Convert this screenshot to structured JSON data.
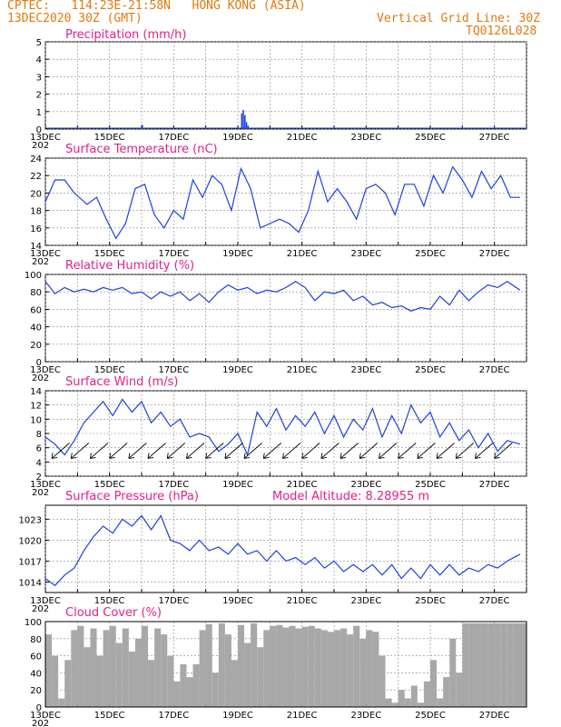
{
  "header": {
    "line1": "CPTEC:   114:23E-21:58N   HONG KONG (ASIA)",
    "line2": "13DEC2020 30Z (GMT)",
    "right1": "Vertical Grid Line: 30Z",
    "right2": "TQ0126L028"
  },
  "model_altitude": "Model Altitude: 8.28955 m",
  "year_stub": "202",
  "colors": {
    "line": "#1f3fe0",
    "title": "#e0208a",
    "header": "#e07a10",
    "cloud": "#a8a8a8",
    "grid": "#888888"
  },
  "x_labels": [
    "13DEC",
    "15DEC",
    "17DEC",
    "19DEC",
    "21DEC",
    "23DEC",
    "25DEC",
    "27DEC"
  ],
  "chart_data": [
    {
      "type": "bar",
      "name": "precip",
      "title": "Precipitation (mm/h)",
      "ylim": [
        0,
        5
      ],
      "yticks": [
        "0",
        "1",
        "2",
        "3",
        "4",
        "5"
      ],
      "ytick_values": [
        0,
        1,
        2,
        3,
        4,
        5
      ],
      "x_days": [
        3.0,
        6.1,
        6.15,
        6.2,
        6.25,
        6.3,
        12.6
      ],
      "values": [
        0.25,
        0.9,
        1.1,
        0.8,
        0.4,
        0.2,
        0.05
      ]
    },
    {
      "type": "line",
      "name": "temperature",
      "title": "Surface Temperature (nC)",
      "ylim": [
        14,
        24
      ],
      "yticks": [
        "14",
        "16",
        "18",
        "20",
        "22",
        "24"
      ],
      "ytick_values": [
        14,
        16,
        18,
        20,
        22,
        24
      ],
      "x_days": [
        0,
        0.3,
        0.6,
        0.9,
        1.3,
        1.6,
        1.9,
        2.2,
        2.5,
        2.8,
        3.1,
        3.4,
        3.7,
        4.0,
        4.3,
        4.6,
        4.9,
        5.2,
        5.5,
        5.8,
        6.1,
        6.4,
        6.7,
        7.0,
        7.3,
        7.6,
        7.9,
        8.2,
        8.5,
        8.8,
        9.1,
        9.4,
        9.7,
        10.0,
        10.3,
        10.6,
        10.9,
        11.2,
        11.5,
        11.8,
        12.1,
        12.4,
        12.7,
        13.0,
        13.3,
        13.6,
        13.9,
        14.2,
        14.5,
        14.8
      ],
      "values": [
        19.0,
        21.5,
        21.5,
        20.0,
        18.7,
        19.5,
        17.0,
        14.8,
        16.5,
        20.5,
        21.0,
        17.5,
        16.0,
        18.0,
        17.0,
        21.5,
        19.5,
        22.0,
        21.0,
        18.0,
        22.8,
        20.5,
        16.0,
        16.5,
        17.0,
        16.5,
        15.5,
        18.0,
        22.5,
        19.0,
        20.5,
        19.0,
        17.0,
        20.5,
        21.0,
        20.0,
        17.5,
        21.0,
        21.0,
        18.5,
        22.0,
        20.0,
        23.0,
        21.5,
        19.5,
        22.5,
        20.5,
        22.0,
        19.5,
        19.5
      ]
    },
    {
      "type": "line",
      "name": "humidity",
      "title": "Relative Humidity (%)",
      "ylim": [
        0,
        100
      ],
      "yticks": [
        "0",
        "20",
        "40",
        "60",
        "80",
        "100"
      ],
      "ytick_values": [
        0,
        20,
        40,
        60,
        80,
        100
      ],
      "x_days": [
        0,
        0.3,
        0.6,
        0.9,
        1.2,
        1.5,
        1.8,
        2.1,
        2.4,
        2.7,
        3.0,
        3.3,
        3.6,
        3.9,
        4.2,
        4.5,
        4.8,
        5.1,
        5.4,
        5.7,
        6.0,
        6.3,
        6.6,
        6.9,
        7.2,
        7.5,
        7.8,
        8.1,
        8.4,
        8.7,
        9.0,
        9.3,
        9.6,
        9.9,
        10.2,
        10.5,
        10.8,
        11.1,
        11.4,
        11.7,
        12.0,
        12.3,
        12.6,
        12.9,
        13.2,
        13.5,
        13.8,
        14.1,
        14.4,
        14.8
      ],
      "values": [
        92,
        78,
        85,
        80,
        83,
        80,
        85,
        82,
        85,
        78,
        80,
        72,
        80,
        75,
        80,
        70,
        78,
        68,
        80,
        88,
        82,
        85,
        78,
        82,
        80,
        85,
        92,
        85,
        70,
        80,
        78,
        82,
        70,
        75,
        65,
        68,
        62,
        64,
        58,
        62,
        60,
        75,
        65,
        82,
        70,
        80,
        88,
        85,
        92,
        82
      ]
    },
    {
      "type": "line",
      "name": "wind",
      "title": "Surface Wind (m/s)",
      "ylim": [
        2,
        14
      ],
      "yticks": [
        "2",
        "4",
        "6",
        "8",
        "10",
        "12",
        "14"
      ],
      "ytick_values": [
        2,
        4,
        6,
        8,
        10,
        12,
        14
      ],
      "x_days": [
        0,
        0.3,
        0.6,
        0.9,
        1.2,
        1.5,
        1.8,
        2.1,
        2.4,
        2.7,
        3.0,
        3.3,
        3.6,
        3.9,
        4.2,
        4.5,
        4.8,
        5.1,
        5.4,
        5.7,
        6.0,
        6.3,
        6.6,
        6.9,
        7.2,
        7.5,
        7.8,
        8.1,
        8.4,
        8.7,
        9.0,
        9.3,
        9.6,
        9.9,
        10.2,
        10.5,
        10.8,
        11.1,
        11.4,
        11.7,
        12.0,
        12.3,
        12.6,
        12.9,
        13.2,
        13.5,
        13.8,
        14.1,
        14.4,
        14.8
      ],
      "values": [
        7.5,
        6.5,
        5.0,
        7.0,
        9.5,
        11.0,
        12.5,
        10.5,
        12.8,
        11.0,
        12.5,
        9.5,
        11.0,
        9.0,
        10.0,
        7.5,
        8.0,
        7.5,
        5.5,
        6.5,
        8.0,
        5.0,
        11.0,
        9.0,
        11.5,
        8.5,
        10.5,
        9.0,
        11.0,
        8.0,
        10.5,
        7.5,
        10.0,
        8.5,
        11.5,
        7.5,
        10.5,
        8.0,
        12.0,
        9.5,
        11.0,
        7.5,
        9.5,
        7.0,
        8.5,
        6.0,
        8.0,
        5.5,
        7.0,
        6.5
      ]
    },
    {
      "type": "line",
      "name": "pressure",
      "title": "Surface Pressure (hPa)",
      "ylim": [
        1012.5,
        1025
      ],
      "yticks": [
        "1014",
        "1017",
        "1020",
        "1023"
      ],
      "ytick_values": [
        1014,
        1017,
        1020,
        1023
      ],
      "x_days": [
        0,
        0.3,
        0.6,
        0.9,
        1.2,
        1.5,
        1.8,
        2.1,
        2.4,
        2.7,
        3.0,
        3.3,
        3.6,
        3.9,
        4.2,
        4.5,
        4.8,
        5.1,
        5.4,
        5.7,
        6.0,
        6.3,
        6.6,
        6.9,
        7.2,
        7.5,
        7.8,
        8.1,
        8.4,
        8.7,
        9.0,
        9.3,
        9.6,
        9.9,
        10.2,
        10.5,
        10.8,
        11.1,
        11.4,
        11.7,
        12.0,
        12.3,
        12.6,
        12.9,
        13.2,
        13.5,
        13.8,
        14.1,
        14.4,
        14.8
      ],
      "values": [
        1014.5,
        1013.5,
        1015,
        1016,
        1018.5,
        1020.5,
        1022,
        1021,
        1023,
        1022,
        1023.5,
        1021.5,
        1023.5,
        1020,
        1019.5,
        1018.5,
        1020,
        1018.5,
        1019,
        1018,
        1019.5,
        1018,
        1018.5,
        1017,
        1018.5,
        1017,
        1017.5,
        1016.5,
        1017.5,
        1016,
        1017,
        1015.5,
        1016.5,
        1015.5,
        1016.5,
        1015,
        1016.5,
        1014.5,
        1016,
        1014.5,
        1016.5,
        1015,
        1016.5,
        1015,
        1016,
        1015.5,
        1016.5,
        1016,
        1017,
        1018
      ]
    },
    {
      "type": "area",
      "name": "cloud",
      "title": "Cloud Cover (%)",
      "ylim": [
        0,
        100
      ],
      "yticks": [
        "0",
        "20",
        "40",
        "60",
        "80",
        "100"
      ],
      "ytick_values": [
        0,
        20,
        40,
        60,
        80,
        100
      ],
      "x_days": [
        0,
        0.2,
        0.4,
        0.6,
        0.8,
        1.0,
        1.2,
        1.4,
        1.6,
        1.8,
        2.0,
        2.2,
        2.4,
        2.6,
        2.8,
        3.0,
        3.2,
        3.4,
        3.6,
        3.8,
        4.0,
        4.2,
        4.4,
        4.6,
        4.8,
        5.0,
        5.2,
        5.4,
        5.6,
        5.8,
        6.0,
        6.2,
        6.4,
        6.6,
        6.8,
        7.0,
        7.2,
        7.4,
        7.6,
        7.8,
        8.0,
        8.2,
        8.4,
        8.6,
        8.8,
        9.0,
        9.2,
        9.4,
        9.6,
        9.8,
        10.0,
        10.2,
        10.4,
        10.6,
        10.8,
        11.0,
        11.2,
        11.4,
        11.6,
        11.8,
        12.0,
        12.2,
        12.4,
        12.6,
        12.8,
        13.0,
        13.2,
        13.4,
        13.6,
        13.8,
        14.0,
        14.2,
        14.4,
        14.6,
        14.8
      ],
      "values": [
        85,
        60,
        10,
        55,
        90,
        95,
        70,
        92,
        60,
        90,
        95,
        75,
        92,
        65,
        80,
        95,
        55,
        92,
        85,
        60,
        30,
        50,
        35,
        50,
        90,
        97,
        40,
        98,
        85,
        55,
        96,
        75,
        98,
        70,
        90,
        95,
        96,
        93,
        95,
        92,
        94,
        95,
        92,
        90,
        88,
        90,
        92,
        85,
        95,
        80,
        90,
        88,
        60,
        10,
        5,
        20,
        10,
        25,
        5,
        30,
        55,
        10,
        35,
        80,
        40,
        98,
        98,
        98,
        98,
        98,
        98,
        98,
        98,
        98,
        98
      ]
    }
  ],
  "wind_barbs": {
    "count": 24,
    "dir_deg": 45
  }
}
